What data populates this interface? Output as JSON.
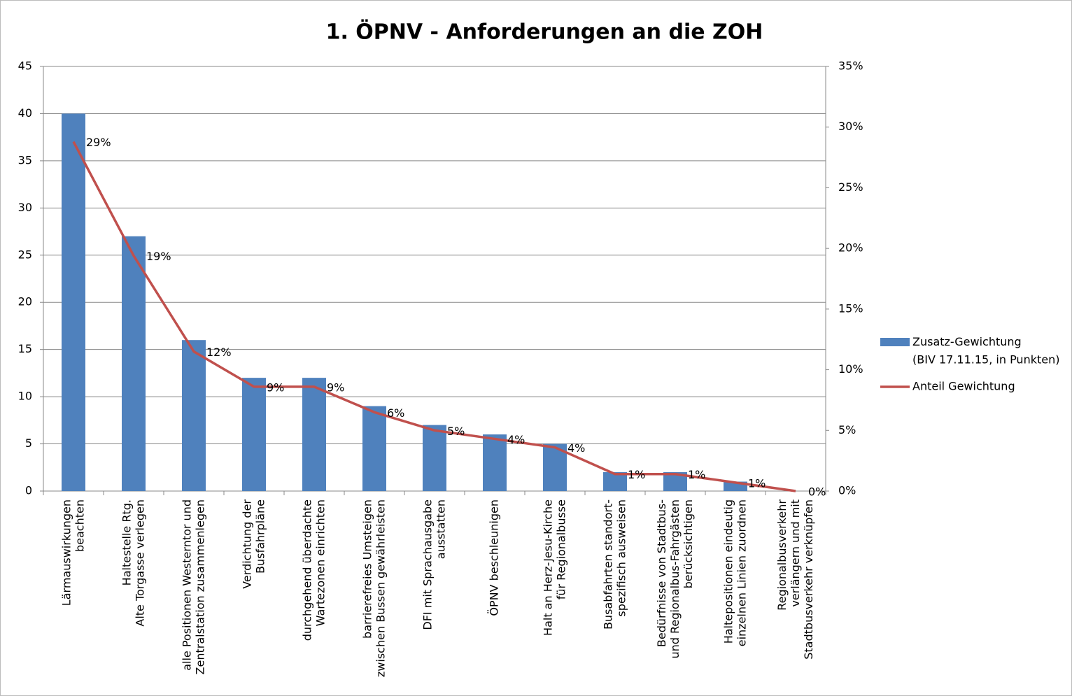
{
  "chart_data": {
    "type": "bar_line",
    "title": "1. ÖPNV - Anforderungen an die ZOH",
    "categories": [
      "Lärmauswirkungen\nbeachten",
      "Haltestelle Rtg.\nAlte Torgasse verlegen",
      "alle Positionen Westerntor und\nZentralstation zusammenlegen",
      "Verdichtung der\nBusfahrpläne",
      "durchgehend überdachte\nWartezonen einrichten",
      "barrierefreies Umsteigen\nzwischen Bussen gewährleisten",
      "DFI mit Sprachausgabe\nausstatten",
      "ÖPNV beschleunigen",
      "Halt an Herz-Jesu-Kirche\nfür Regionalbusse",
      "Busabfahrten standort-\nspezifisch ausweisen",
      "Bedürfnisse von Stadtbus-\nund Regionalbus-Fahrgästen\nberücksichtigen",
      "Haltepositionen eindeutig\neinzelnen Linien zuordnen",
      "Regionalbusverkehr\nverlängern und mit\nStadtbusverkehr verknüpfen"
    ],
    "series": [
      {
        "name": "Zusatz-Gewichtung\n(BIV 17.11.15, in Punkten)",
        "type": "bar",
        "color": "#4f81bd",
        "values": [
          40,
          27,
          16,
          12,
          12,
          9,
          7,
          6,
          5,
          2,
          2,
          1,
          0
        ]
      },
      {
        "name": "Anteil Gewichtung",
        "type": "line",
        "color": "#c0504d",
        "axis": "y2",
        "values": [
          28.8,
          19.4,
          11.5,
          8.6,
          8.6,
          6.5,
          5.0,
          4.3,
          3.6,
          1.4,
          1.4,
          0.7,
          0
        ],
        "value_labels": [
          "29%",
          "19%",
          "12%",
          "9%",
          "9%",
          "6%",
          "5%",
          "4%",
          "4%",
          "1%",
          "1%",
          "1%",
          "0%"
        ]
      }
    ],
    "ylim": [
      0,
      45
    ],
    "yticks": [
      0,
      5,
      10,
      15,
      20,
      25,
      30,
      35,
      40,
      45
    ],
    "y2lim": [
      0,
      35
    ],
    "y2ticks": [
      {
        "value": 0,
        "label": "0%"
      },
      {
        "value": 5,
        "label": "5%"
      },
      {
        "value": 10,
        "label": "10%"
      },
      {
        "value": 15,
        "label": "15%"
      },
      {
        "value": 20,
        "label": "20%"
      },
      {
        "value": 25,
        "label": "25%"
      },
      {
        "value": 30,
        "label": "30%"
      },
      {
        "value": 35,
        "label": "35%"
      }
    ],
    "grid": true,
    "legend": "right"
  }
}
